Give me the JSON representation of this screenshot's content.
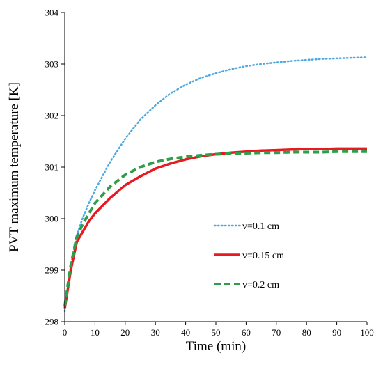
{
  "chart_data": {
    "type": "line",
    "title": "",
    "xlabel": "Time (min)",
    "ylabel": "PVT maximum temperature [K]",
    "xlim": [
      0,
      100
    ],
    "ylim": [
      298,
      304
    ],
    "xticks": [
      "0",
      "10",
      "20",
      "30",
      "40",
      "50",
      "60",
      "70",
      "80",
      "90",
      "100"
    ],
    "yticks": [
      "298",
      "299",
      "300",
      "301",
      "302",
      "303",
      "304"
    ],
    "grid": false,
    "legend_position": "center-right",
    "series": [
      {
        "name": "v=0.1 cm",
        "color": "#4aa8e0",
        "style": "dotted",
        "x": [
          0,
          2,
          4,
          6,
          8,
          10,
          15,
          20,
          25,
          30,
          35,
          40,
          45,
          50,
          55,
          60,
          65,
          70,
          75,
          80,
          85,
          90,
          95,
          100
        ],
        "y": [
          298.2,
          299.1,
          299.68,
          300.02,
          300.3,
          300.55,
          301.1,
          301.55,
          301.92,
          302.2,
          302.43,
          302.6,
          302.73,
          302.82,
          302.9,
          302.96,
          303.0,
          303.03,
          303.06,
          303.08,
          303.1,
          303.11,
          303.12,
          303.13
        ]
      },
      {
        "name": "v=0.15 cm",
        "color": "#e8191f",
        "style": "solid",
        "x": [
          0,
          2,
          4,
          6,
          8,
          10,
          15,
          20,
          25,
          30,
          35,
          40,
          45,
          50,
          55,
          60,
          65,
          70,
          75,
          80,
          85,
          90,
          95,
          100
        ],
        "y": [
          298.25,
          299.0,
          299.55,
          299.75,
          299.95,
          300.1,
          300.4,
          300.65,
          300.82,
          300.97,
          301.07,
          301.15,
          301.21,
          301.25,
          301.28,
          301.3,
          301.32,
          301.33,
          301.34,
          301.35,
          301.35,
          301.36,
          301.36,
          301.36
        ]
      },
      {
        "name": "v=0.2 cm",
        "color": "#2f9e4a",
        "style": "dashed",
        "x": [
          0,
          2,
          4,
          6,
          8,
          10,
          15,
          20,
          25,
          30,
          35,
          40,
          45,
          50,
          55,
          60,
          65,
          70,
          75,
          80,
          85,
          90,
          95,
          100
        ],
        "y": [
          298.3,
          299.1,
          299.65,
          299.9,
          300.1,
          300.3,
          300.62,
          300.85,
          301.0,
          301.1,
          301.16,
          301.2,
          301.23,
          301.25,
          301.26,
          301.27,
          301.28,
          301.28,
          301.29,
          301.29,
          301.29,
          301.3,
          301.3,
          301.3
        ]
      }
    ]
  }
}
